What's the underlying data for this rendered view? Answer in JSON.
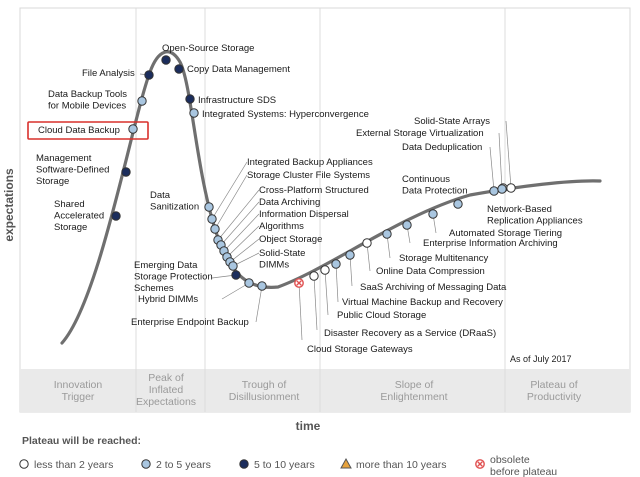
{
  "chart_data": {
    "type": "hype-cycle",
    "as_of": "As of July 2017",
    "xlabel": "time",
    "ylabel": "expectations",
    "phases": [
      [
        "Innovation",
        "Trigger"
      ],
      [
        "Peak of",
        "Inflated",
        "Expectations"
      ],
      [
        "Trough of",
        "Disillusionment"
      ],
      [
        "Slope of",
        "Enlightenment"
      ],
      [
        "Plateau of",
        "Productivity"
      ]
    ],
    "legend": {
      "title": "Plateau will be reached:",
      "items": [
        {
          "key": "lt2",
          "label": "less than 2 years",
          "fill": "#ffffff",
          "shape": "circle"
        },
        {
          "key": "2to5",
          "label": "2 to 5 years",
          "fill": "#a9c6e0",
          "shape": "circle"
        },
        {
          "key": "5to10",
          "label": "5 to 10 years",
          "fill": "#1b2d5c",
          "shape": "circle"
        },
        {
          "key": "gt10",
          "label": "more than 10 years",
          "fill": "#e6a23c",
          "shape": "triangle"
        },
        {
          "key": "obs",
          "label": [
            "obsolete",
            "before plateau"
          ],
          "fill": "#e05050",
          "shape": "x-circle"
        }
      ]
    },
    "highlight": "Cloud Data Backup",
    "technologies": [
      {
        "lines": [
          "Shared",
          "Accelerated",
          "Storage"
        ],
        "cat": "5to10"
      },
      {
        "lines": [
          "Management",
          "Software-Defined",
          "Storage"
        ],
        "cat": "5to10"
      },
      {
        "lines": [
          "Cloud Data Backup"
        ],
        "cat": "2to5"
      },
      {
        "lines": [
          "Data Backup Tools",
          "for Mobile Devices"
        ],
        "cat": "2to5"
      },
      {
        "lines": [
          "File Analysis"
        ],
        "cat": "5to10"
      },
      {
        "lines": [
          "Open-Source Storage"
        ],
        "cat": "5to10"
      },
      {
        "lines": [
          "Copy Data Management"
        ],
        "cat": "5to10"
      },
      {
        "lines": [
          "Infrastructure SDS"
        ],
        "cat": "5to10"
      },
      {
        "lines": [
          "Integrated Systems: Hyperconvergence"
        ],
        "cat": "2to5"
      },
      {
        "lines": [
          "Data",
          "Sanitization"
        ],
        "cat": "2to5"
      },
      {
        "lines": [
          "Integrated Backup Appliances"
        ],
        "cat": "2to5"
      },
      {
        "lines": [
          "Storage Cluster File Systems"
        ],
        "cat": "2to5"
      },
      {
        "lines": [
          "Cross-Platform Structured"
        ],
        "cat": "2to5"
      },
      {
        "lines": [
          "Data Archiving"
        ],
        "cat": "2to5"
      },
      {
        "lines": [
          "Information Dispersal"
        ],
        "cat": "2to5"
      },
      {
        "lines": [
          "Algorithms"
        ],
        "cat": "2to5"
      },
      {
        "lines": [
          "Object Storage"
        ],
        "cat": "2to5"
      },
      {
        "lines": [
          "Solid-State",
          "DIMMs"
        ],
        "cat": "2to5"
      },
      {
        "lines": [
          "Emerging Data",
          "Storage Protection",
          "Schemes"
        ],
        "cat": "5to10"
      },
      {
        "lines": [
          "Hybrid DIMMs"
        ],
        "cat": "2to5"
      },
      {
        "lines": [
          "Enterprise Endpoint Backup"
        ],
        "cat": "2to5"
      },
      {
        "lines": [
          "Cloud Storage Gateways"
        ],
        "cat": "obs"
      },
      {
        "lines": [
          "Disaster Recovery as a Service (DRaaS)"
        ],
        "cat": "lt2"
      },
      {
        "lines": [
          "Public Cloud Storage"
        ],
        "cat": "lt2"
      },
      {
        "lines": [
          "Virtual Machine Backup and Recovery"
        ],
        "cat": "2to5"
      },
      {
        "lines": [
          "SaaS Archiving of Messaging Data"
        ],
        "cat": "2to5"
      },
      {
        "lines": [
          "Online Data Compression"
        ],
        "cat": "lt2"
      },
      {
        "lines": [
          "Storage Multitenancy"
        ],
        "cat": "2to5"
      },
      {
        "lines": [
          "Enterprise Information Archiving"
        ],
        "cat": "2to5"
      },
      {
        "lines": [
          "Automated Storage Tiering"
        ],
        "cat": "2to5"
      },
      {
        "lines": [
          "Network-Based",
          "Replication Appliances"
        ],
        "cat": "2to5"
      },
      {
        "lines": [
          "Continuous",
          "Data Protection"
        ],
        "cat": "lt2"
      },
      {
        "lines": [
          "Data Deduplication"
        ],
        "cat": "2to5"
      },
      {
        "lines": [
          "External Storage Virtualization"
        ],
        "cat": "2to5"
      },
      {
        "lines": [
          "Solid-State Arrays"
        ],
        "cat": "lt2"
      }
    ]
  }
}
